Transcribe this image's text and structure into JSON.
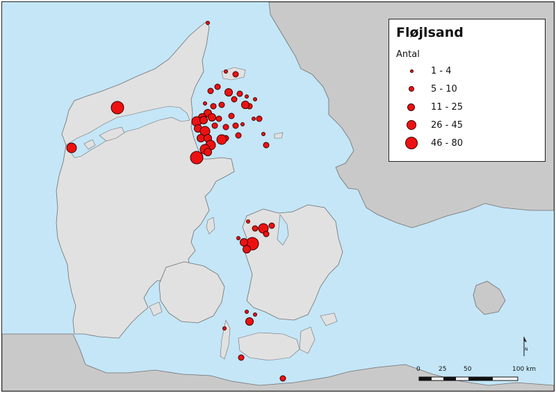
{
  "legend": {
    "title": "Fløjlsand",
    "subtitle": "Antal",
    "classes": [
      {
        "label": "1 - 4"
      },
      {
        "label": "5 - 10"
      },
      {
        "label": "11 - 25"
      },
      {
        "label": "26 - 45"
      },
      {
        "label": "46 - 80"
      }
    ]
  },
  "scale": {
    "ticks": [
      "0",
      "25",
      "50",
      "100 km"
    ]
  },
  "north_arrow": {
    "label": "N"
  },
  "colors": {
    "sea": "#c4e6f7",
    "land": "#e1e1e1",
    "other_land": "#c9c9c9",
    "coast": "#6f6f6f",
    "marker_fill": "#ee1111",
    "marker_stroke": "#3a0000"
  }
}
